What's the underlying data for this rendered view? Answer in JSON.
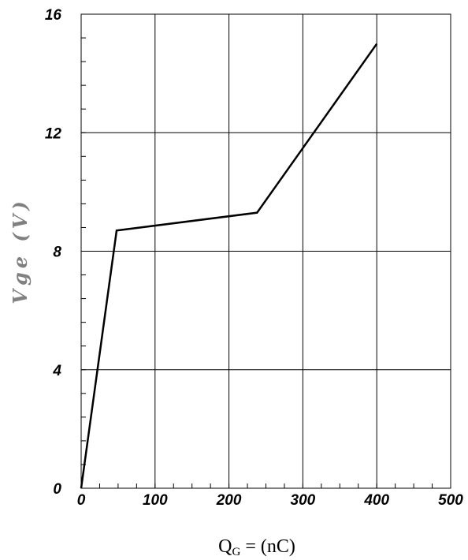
{
  "chart_data": {
    "type": "line",
    "xlabel": {
      "main": "Q",
      "sub": "G",
      "rest": " = (nC)"
    },
    "ylabel": "Vge (V)",
    "xlim": [
      0,
      500
    ],
    "ylim": [
      0,
      16
    ],
    "xticks": [
      "0",
      "100",
      "200",
      "300",
      "400",
      "500"
    ],
    "yticks": [
      "0",
      "4",
      "8",
      "12",
      "16"
    ],
    "grid": true,
    "series": [
      {
        "x": [
          0,
          48,
          238,
          400
        ],
        "y": [
          0,
          8.7,
          9.3,
          15
        ]
      }
    ]
  },
  "colors": {
    "line": "#000000",
    "grid": "#000000",
    "ylabel": "#808080"
  }
}
